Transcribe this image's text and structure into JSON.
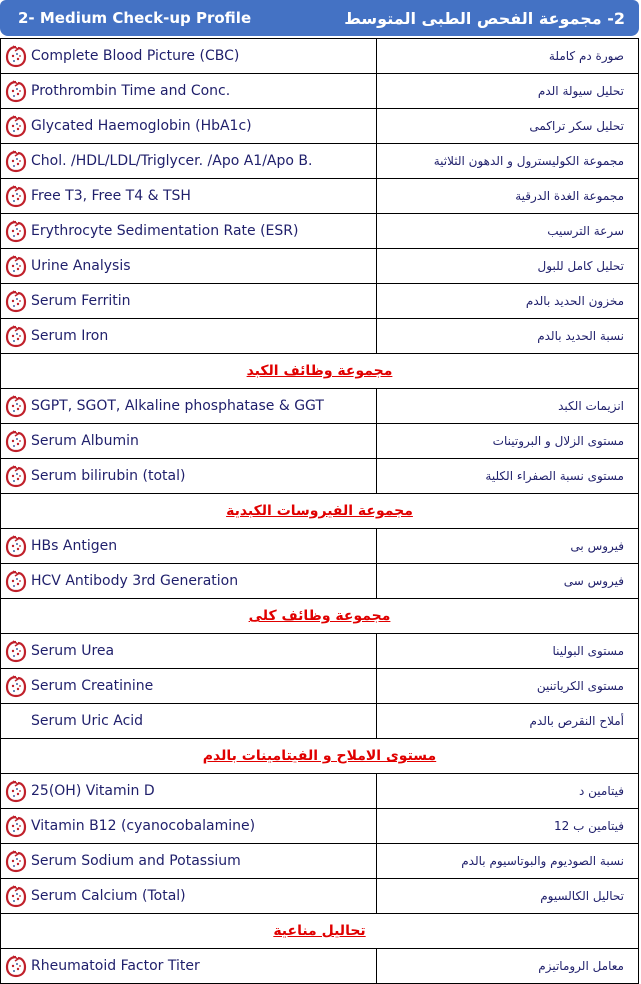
{
  "header": {
    "title_en": "2- Medium Check-up Profile",
    "title_ar": "2- مجموعة الفحص الطبى المتوسط"
  },
  "colors": {
    "header_bg": "#4472c4",
    "section_text": "#e00000",
    "body_text": "#1f1f6b"
  },
  "rows": [
    {
      "type": "test",
      "en": "Complete Blood Picture (CBC)",
      "ar": "صورة دم كاملة",
      "icon": "lab-logo-icon"
    },
    {
      "type": "test",
      "en": "Prothrombin Time and Conc.",
      "ar": "تحليل سيولة الدم",
      "icon": "lab-logo-icon"
    },
    {
      "type": "test",
      "en": "Glycated Haemoglobin (HbA1c)",
      "ar": "تحليل سكر تراكمى",
      "icon": "lab-logo-icon"
    },
    {
      "type": "test",
      "en": "Chol. /HDL/LDL/Triglycer. /Apo A1/Apo B.",
      "ar": "مجموعة الكوليسترول و الدهون الثلاثية",
      "icon": "lab-logo-icon"
    },
    {
      "type": "test",
      "en": "Free T3, Free T4 & TSH",
      "ar": "مجموعة الغدة الدرقية",
      "icon": "lab-logo-icon"
    },
    {
      "type": "test",
      "en": "Erythrocyte Sedimentation Rate (ESR)",
      "ar": "سرعة الترسيب",
      "icon": "lab-logo-icon"
    },
    {
      "type": "test",
      "en": "Urine Analysis",
      "ar": "تحليل كامل للبول",
      "icon": "lab-logo-icon"
    },
    {
      "type": "test",
      "en": "Serum Ferritin",
      "ar": "مخزون الحديد بالدم",
      "icon": "lab-logo-icon"
    },
    {
      "type": "test",
      "en": "Serum Iron",
      "ar": "نسبة الحديد بالدم",
      "icon": "lab-logo-icon"
    },
    {
      "type": "section",
      "ar": "مجموعة وظائف الكبد"
    },
    {
      "type": "test",
      "en": "SGPT, SGOT, Alkaline phosphatase & GGT",
      "ar": "انزيمات الكبد",
      "icon": "lab-logo-icon"
    },
    {
      "type": "test",
      "en": "Serum Albumin",
      "ar": "مستوى الزلال و البروتينات",
      "icon": "lab-logo-icon"
    },
    {
      "type": "test",
      "en": "Serum bilirubin (total)",
      "ar": "مستوى نسبة الصفراء الكلية",
      "icon": "lab-logo-icon"
    },
    {
      "type": "section",
      "ar": "مجموعة الفيروسات الكبدية"
    },
    {
      "type": "test",
      "en": "HBs Antigen",
      "ar": "فيروس بى",
      "icon": "lab-logo-icon"
    },
    {
      "type": "test",
      "en": "HCV Antibody 3rd Generation",
      "ar": "فيروس سى",
      "icon": "lab-logo-icon"
    },
    {
      "type": "section",
      "ar": "مجموعة وظائف كلى"
    },
    {
      "type": "test",
      "en": "Serum Urea",
      "ar": "مستوى البولينا",
      "icon": "lab-logo-icon"
    },
    {
      "type": "test",
      "en": "Serum Creatinine",
      "ar": "مستوى الكرياتنين",
      "icon": "lab-logo-icon"
    },
    {
      "type": "test",
      "en": "Serum Uric Acid",
      "ar": "أملاح النقرص بالدم",
      "icon": ""
    },
    {
      "type": "section",
      "ar": "مستوى الاملاح و الفيتامينات بالدم"
    },
    {
      "type": "test",
      "en": "25(OH) Vitamin D",
      "ar": "فيتامين د",
      "icon": "lab-logo-icon"
    },
    {
      "type": "test",
      "en": "Vitamin B12 (cyanocobalamine)",
      "ar": "فيتامين ب 12",
      "icon": "lab-logo-icon"
    },
    {
      "type": "test",
      "en": "Serum Sodium and Potassium",
      "ar": "نسبة الصوديوم والبوتاسيوم بالدم",
      "icon": "lab-logo-icon"
    },
    {
      "type": "test",
      "en": "Serum Calcium (Total)",
      "ar": "تحاليل الكالسيوم",
      "icon": "lab-logo-icon"
    },
    {
      "type": "section",
      "ar": "تحاليل مناعية"
    },
    {
      "type": "test",
      "en": "Rheumatoid Factor Titer",
      "ar": "معامل الروماتيزم",
      "icon": "lab-logo-icon"
    }
  ]
}
